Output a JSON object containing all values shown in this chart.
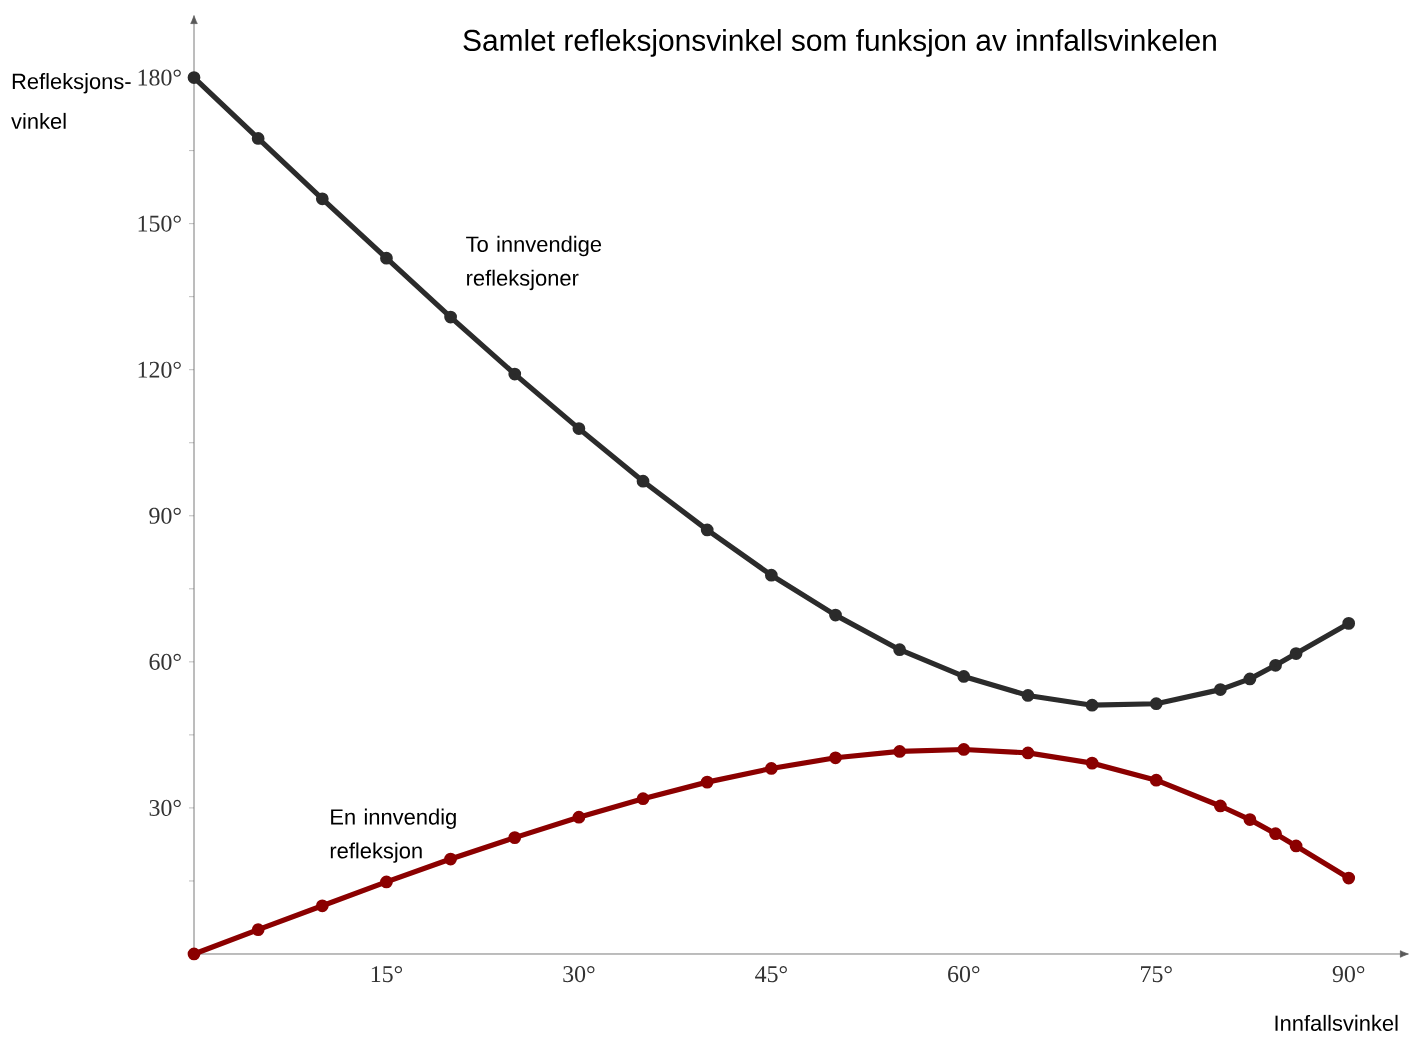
{
  "chart_data": {
    "type": "line",
    "title": "Samlet refleksjonsvinkel som funksjon av innfallsvinkelen",
    "xlabel": "Innfallsvinkel",
    "ylabel": "Refleksjons-vinkel",
    "marker": "circle",
    "grid": false,
    "legend": false,
    "xlim": [
      0,
      94
    ],
    "ylim": [
      0,
      191
    ],
    "xticks": [
      {
        "value": 15,
        "label": "15°"
      },
      {
        "value": 30,
        "label": "30°"
      },
      {
        "value": 45,
        "label": "45°"
      },
      {
        "value": 60,
        "label": "60°"
      },
      {
        "value": 75,
        "label": "75°"
      },
      {
        "value": 90,
        "label": "90°"
      }
    ],
    "yticks": [
      {
        "value": 15,
        "label": null
      },
      {
        "value": 30,
        "label": "30°"
      },
      {
        "value": 45,
        "label": null
      },
      {
        "value": 60,
        "label": "60°"
      },
      {
        "value": 75,
        "label": null
      },
      {
        "value": 90,
        "label": "90°"
      },
      {
        "value": 105,
        "label": null
      },
      {
        "value": 120,
        "label": "120°"
      },
      {
        "value": 135,
        "label": null
      },
      {
        "value": 150,
        "label": "150°"
      },
      {
        "value": 165,
        "label": null
      },
      {
        "value": 180,
        "label": "180°"
      }
    ],
    "x": [
      0,
      5,
      10,
      15,
      20,
      25,
      30,
      35,
      40,
      45,
      50,
      55,
      60,
      65,
      70,
      75,
      80,
      82.3,
      84.3,
      85.9,
      90
    ],
    "series": [
      {
        "name": "To innvendige refleksjoner",
        "color": "#2b2b2b",
        "values": [
          180,
          167.5,
          155.1,
          142.9,
          130.8,
          119.1,
          107.9,
          97.1,
          87.1,
          77.8,
          69.6,
          62.5,
          57.0,
          53.1,
          51.1,
          51.4,
          54.3,
          56.5,
          59.3,
          61.7,
          67.9
        ]
      },
      {
        "name": "En innvendig refleksjon",
        "color": "#8b0000",
        "values": [
          0,
          5.0,
          9.9,
          14.8,
          19.5,
          23.9,
          28.1,
          31.9,
          35.3,
          38.1,
          40.3,
          41.6,
          42.0,
          41.3,
          39.2,
          35.7,
          30.4,
          27.6,
          24.7,
          22.2,
          15.6
        ]
      }
    ]
  }
}
